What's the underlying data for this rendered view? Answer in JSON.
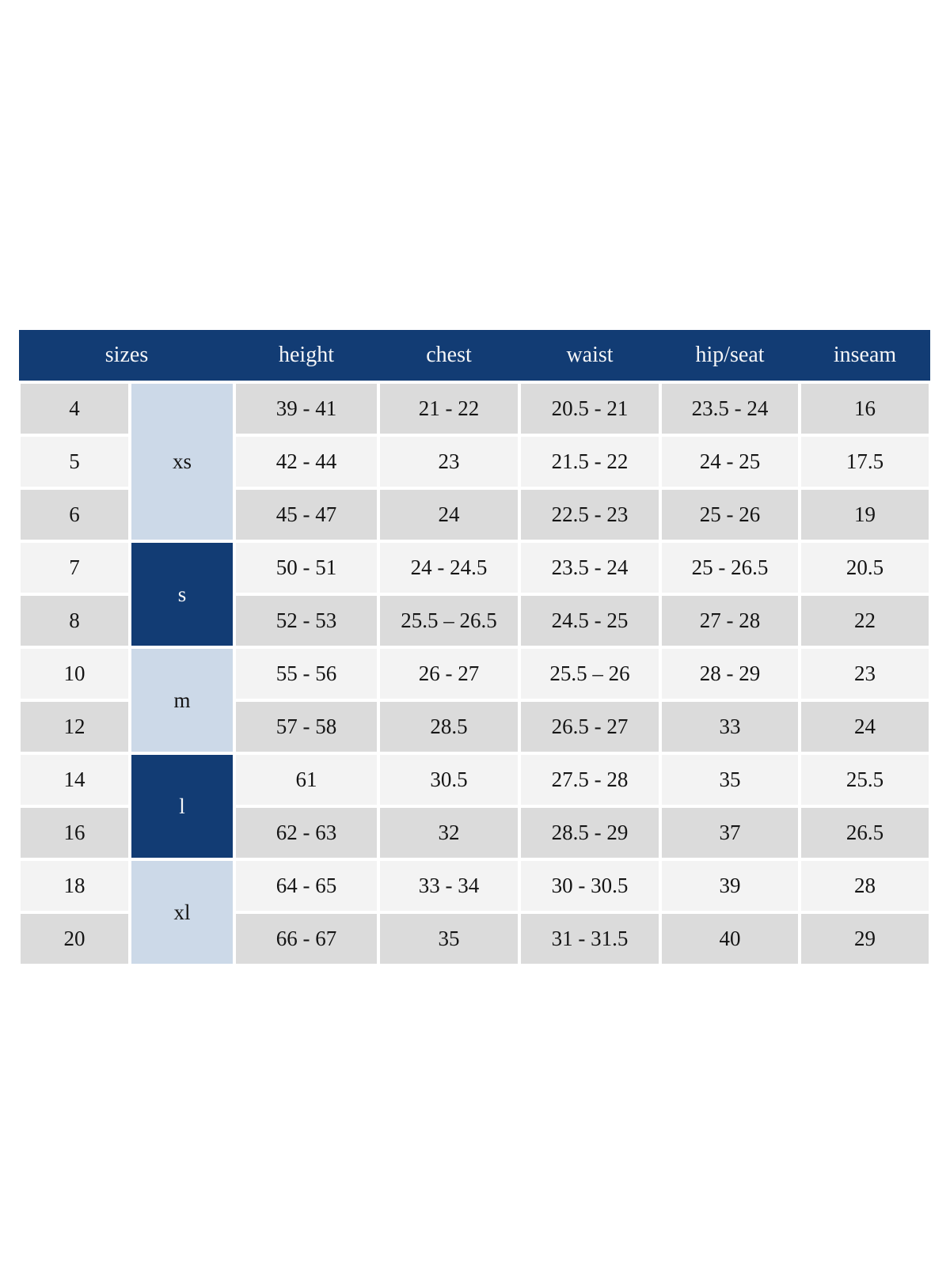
{
  "page": {
    "background": "#ffffff"
  },
  "chart_data": {
    "type": "table",
    "title": "",
    "columns": [
      "sizes",
      "height",
      "chest",
      "waist",
      "hip/seat",
      "inseam"
    ],
    "size_groups": [
      {
        "label": "xs",
        "sizes": [
          "4",
          "5",
          "6"
        ]
      },
      {
        "label": "s",
        "sizes": [
          "7",
          "8"
        ]
      },
      {
        "label": "m",
        "sizes": [
          "10",
          "12"
        ]
      },
      {
        "label": "l",
        "sizes": [
          "14",
          "16"
        ]
      },
      {
        "label": "xl",
        "sizes": [
          "18",
          "20"
        ]
      }
    ],
    "rows": [
      [
        "4",
        "39 - 41",
        "21 - 22",
        "20.5 - 21",
        "23.5 - 24",
        "16"
      ],
      [
        "5",
        "42 - 44",
        "23",
        "21.5 - 22",
        "24 - 25",
        "17.5"
      ],
      [
        "6",
        "45 - 47",
        "24",
        "22.5 - 23",
        "25 - 26",
        "19"
      ],
      [
        "7",
        "50 - 51",
        "24 - 24.5",
        "23.5 - 24",
        "25 - 26.5",
        "20.5"
      ],
      [
        "8",
        "52 - 53",
        "25.5 – 26.5",
        "24.5 - 25",
        "27 - 28",
        "22"
      ],
      [
        "10",
        "55 - 56",
        "26 - 27",
        "25.5 – 26",
        "28 - 29",
        "23"
      ],
      [
        "12",
        "57 - 58",
        "28.5",
        "26.5 - 27",
        "33",
        "24"
      ],
      [
        "14",
        "61",
        "30.5",
        "27.5 - 28",
        "35",
        "25.5"
      ],
      [
        "16",
        "62 - 63",
        "32",
        "28.5 - 29",
        "37",
        "26.5"
      ],
      [
        "18",
        "64 - 65",
        "33 - 34",
        "30 - 30.5",
        "39",
        "28"
      ],
      [
        "20",
        "66 - 67",
        "35",
        "31 - 31.5",
        "40",
        "29"
      ]
    ]
  },
  "table": {
    "colors": {
      "header_bg": "#123c74",
      "header_text": "#f5f6f8",
      "group_light_bg": "#ccd9e8",
      "row_gray_bg": "#dbdbdb",
      "row_light_bg": "#f3f3f3",
      "body_text": "#141414"
    },
    "columns": [
      {
        "label": "sizes"
      },
      {
        "label": "height"
      },
      {
        "label": "chest"
      },
      {
        "label": "waist"
      },
      {
        "label": "hip/seat"
      },
      {
        "label": "inseam"
      }
    ],
    "rows": [
      {
        "size": "4",
        "shade": "gray",
        "group": {
          "label": "xs",
          "tone": "light",
          "span": 3
        },
        "values": [
          "39 - 41",
          "21 - 22",
          "20.5 - 21",
          "23.5 - 24",
          "16"
        ]
      },
      {
        "size": "5",
        "shade": "light",
        "values": [
          "42 - 44",
          "23",
          "21.5 - 22",
          "24 - 25",
          "17.5"
        ]
      },
      {
        "size": "6",
        "shade": "gray",
        "values": [
          "45 - 47",
          "24",
          "22.5 - 23",
          "25 - 26",
          "19"
        ]
      },
      {
        "size": "7",
        "shade": "light",
        "group": {
          "label": "s",
          "tone": "dark",
          "span": 2
        },
        "values": [
          "50 - 51",
          "24 - 24.5",
          "23.5 - 24",
          "25 - 26.5",
          "20.5"
        ]
      },
      {
        "size": "8",
        "shade": "gray",
        "values": [
          "52 - 53",
          "25.5 – 26.5",
          "24.5 - 25",
          "27 - 28",
          "22"
        ]
      },
      {
        "size": "10",
        "shade": "light",
        "group": {
          "label": "m",
          "tone": "light",
          "span": 2
        },
        "values": [
          "55 - 56",
          "26 - 27",
          "25.5 – 26",
          "28 - 29",
          "23"
        ]
      },
      {
        "size": "12",
        "shade": "gray",
        "values": [
          "57 - 58",
          "28.5",
          "26.5 - 27",
          "33",
          "24"
        ]
      },
      {
        "size": "14",
        "shade": "light",
        "group": {
          "label": "l",
          "tone": "dark",
          "span": 2
        },
        "values": [
          "61",
          "30.5",
          "27.5 - 28",
          "35",
          "25.5"
        ]
      },
      {
        "size": "16",
        "shade": "gray",
        "values": [
          "62 - 63",
          "32",
          "28.5 - 29",
          "37",
          "26.5"
        ]
      },
      {
        "size": "18",
        "shade": "light",
        "group": {
          "label": "xl",
          "tone": "light",
          "span": 2
        },
        "values": [
          "64 - 65",
          "33 - 34",
          "30 - 30.5",
          "39",
          "28"
        ]
      },
      {
        "size": "20",
        "shade": "gray",
        "values": [
          "66 - 67",
          "35",
          "31 - 31.5",
          "40",
          "29"
        ]
      }
    ]
  }
}
